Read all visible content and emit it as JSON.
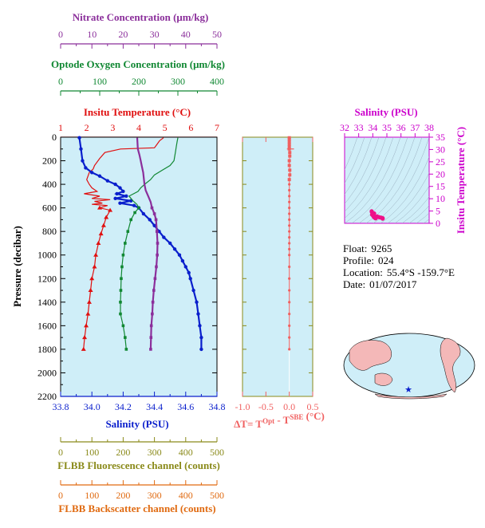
{
  "colors": {
    "nitrate": "#8b2f9b",
    "oxygen": "#118833",
    "temperature": "#e01010",
    "salinity": "#0a1fcc",
    "fluorescence": "#8a8a1a",
    "backscatter": "#e06a10",
    "dt": "#f06060",
    "ts_axis": "#cc00cc",
    "panel_bg": "#cfeef8",
    "land": "#f4b8b8"
  },
  "info": {
    "float_label": "Float:",
    "float": "9265",
    "profile_label": "Profile:",
    "profile": "024",
    "location_label": "Location:",
    "location": "55.4°S  -159.7°E",
    "date_label": "Date:",
    "date": "01/07/2017"
  },
  "chart_data": [
    {
      "type": "line",
      "panel": "profile",
      "ylabel": "Pressure (decibar)",
      "yticks": [
        0,
        200,
        400,
        600,
        800,
        1000,
        1200,
        1400,
        1600,
        1800,
        2000,
        2200
      ],
      "ylim": [
        2200,
        0
      ],
      "axes": {
        "nitrate": {
          "title": "Nitrate Concentration (μm/kg)",
          "range": [
            0,
            50
          ],
          "ticks": [
            0,
            10,
            20,
            30,
            40,
            50
          ]
        },
        "oxygen": {
          "title": "Optode Oxygen Concentration (μm/kg)",
          "range": [
            0,
            400
          ],
          "ticks": [
            0,
            100,
            200,
            300,
            400
          ]
        },
        "temperature": {
          "title": "Insitu Temperature (°C)",
          "range": [
            1,
            7
          ],
          "ticks": [
            1,
            2,
            3,
            4,
            5,
            6,
            7
          ]
        },
        "salinity": {
          "title": "Salinity (PSU)",
          "range": [
            33.8,
            34.8
          ],
          "ticks": [
            "33.8",
            "34.0",
            "34.2",
            "34.4",
            "34.6",
            "34.8"
          ]
        },
        "fluorescence": {
          "title": "FLBB Fluorescence channel (counts)",
          "range": [
            0,
            500
          ],
          "ticks": [
            0,
            100,
            200,
            300,
            400,
            500
          ]
        },
        "backscatter": {
          "title": "FLBB Backscatter channel (counts)",
          "range": [
            0,
            500
          ],
          "ticks": [
            0,
            100,
            200,
            300,
            400,
            500
          ]
        }
      },
      "series": [
        {
          "axis": "temperature",
          "marker": "triangle",
          "points": [
            [
              4.95,
              5
            ],
            [
              4.8,
              30
            ],
            [
              4.7,
              60
            ],
            [
              4.6,
              90
            ],
            [
              3.3,
              100
            ],
            [
              2.7,
              130
            ],
            [
              2.5,
              180
            ],
            [
              2.3,
              240
            ],
            [
              2.25,
              270
            ],
            [
              2.1,
              300
            ],
            [
              2.05,
              330
            ],
            [
              2.0,
              360
            ],
            [
              2.1,
              400
            ],
            [
              2.2,
              430
            ],
            [
              2.4,
              460
            ],
            [
              1.9,
              480
            ],
            [
              2.5,
              500
            ],
            [
              2.2,
              520
            ],
            [
              2.9,
              530
            ],
            [
              2.3,
              545
            ],
            [
              2.6,
              560
            ],
            [
              2.2,
              570
            ],
            [
              2.8,
              580
            ],
            [
              2.5,
              600
            ],
            [
              2.9,
              620
            ],
            [
              2.75,
              680
            ],
            [
              2.65,
              750
            ],
            [
              2.55,
              820
            ],
            [
              2.45,
              900
            ],
            [
              2.35,
              1000
            ],
            [
              2.3,
              1100
            ],
            [
              2.2,
              1200
            ],
            [
              2.15,
              1300
            ],
            [
              2.1,
              1400
            ],
            [
              2.05,
              1500
            ],
            [
              1.98,
              1600
            ],
            [
              1.92,
              1700
            ],
            [
              1.88,
              1800
            ]
          ]
        },
        {
          "axis": "salinity",
          "marker": "circle",
          "points": [
            [
              33.92,
              5
            ],
            [
              33.93,
              100
            ],
            [
              33.94,
              200
            ],
            [
              33.96,
              260
            ],
            [
              34.0,
              300
            ],
            [
              34.05,
              330
            ],
            [
              34.1,
              370
            ],
            [
              34.15,
              400
            ],
            [
              34.18,
              430
            ],
            [
              34.2,
              460
            ],
            [
              34.16,
              480
            ],
            [
              34.22,
              500
            ],
            [
              34.15,
              520
            ],
            [
              34.25,
              540
            ],
            [
              34.18,
              560
            ],
            [
              34.27,
              580
            ],
            [
              34.3,
              600
            ],
            [
              34.33,
              650
            ],
            [
              34.37,
              700
            ],
            [
              34.4,
              750
            ],
            [
              34.43,
              800
            ],
            [
              34.46,
              850
            ],
            [
              34.5,
              900
            ],
            [
              34.53,
              950
            ],
            [
              34.56,
              1000
            ],
            [
              34.58,
              1050
            ],
            [
              34.6,
              1100
            ],
            [
              34.62,
              1150
            ],
            [
              34.63,
              1200
            ],
            [
              34.65,
              1300
            ],
            [
              34.67,
              1400
            ],
            [
              34.68,
              1500
            ],
            [
              34.69,
              1600
            ],
            [
              34.7,
              1700
            ],
            [
              34.7,
              1800
            ]
          ]
        },
        {
          "axis": "oxygen",
          "marker": "square",
          "points": [
            [
              300,
              5
            ],
            [
              298,
              40
            ],
            [
              296,
              80
            ],
            [
              294,
              120
            ],
            [
              292,
              160
            ],
            [
              290,
              200
            ],
            [
              280,
              240
            ],
            [
              260,
              280
            ],
            [
              240,
              320
            ],
            [
              230,
              360
            ],
            [
              215,
              400
            ],
            [
              205,
              430
            ],
            [
              198,
              460
            ],
            [
              175,
              500
            ],
            [
              185,
              540
            ],
            [
              195,
              570
            ],
            [
              200,
              600
            ],
            [
              190,
              640
            ],
            [
              180,
              700
            ],
            [
              172,
              800
            ],
            [
              165,
              900
            ],
            [
              160,
              1000
            ],
            [
              157,
              1100
            ],
            [
              155,
              1200
            ],
            [
              154,
              1300
            ],
            [
              153,
              1400
            ],
            [
              153,
              1500
            ],
            [
              160,
              1600
            ],
            [
              165,
              1700
            ],
            [
              168,
              1800
            ]
          ]
        },
        {
          "axis": "nitrate",
          "marker": "square",
          "points": [
            [
              24.5,
              5
            ],
            [
              24.7,
              100
            ],
            [
              25.2,
              150
            ],
            [
              25.6,
              200
            ],
            [
              26.0,
              250
            ],
            [
              26.4,
              300
            ],
            [
              26.6,
              350
            ],
            [
              26.8,
              400
            ],
            [
              27.2,
              450
            ],
            [
              28.0,
              500
            ],
            [
              28.8,
              550
            ],
            [
              29.2,
              600
            ],
            [
              30.0,
              650
            ],
            [
              30.5,
              700
            ],
            [
              30.8,
              800
            ],
            [
              31.0,
              900
            ],
            [
              30.9,
              1000
            ],
            [
              30.6,
              1100
            ],
            [
              30.2,
              1200
            ],
            [
              29.8,
              1300
            ],
            [
              29.5,
              1400
            ],
            [
              29.3,
              1500
            ],
            [
              29.0,
              1600
            ],
            [
              28.9,
              1700
            ],
            [
              28.8,
              1800
            ]
          ]
        }
      ]
    },
    {
      "type": "scatter",
      "panel": "delta-t",
      "xlabel": "ΔT= T^Opt - T^SBE (°C)",
      "xlim": [
        -1.0,
        0.5
      ],
      "xticks": [
        "-1.0",
        "-0.5",
        "0.0",
        "0.5"
      ],
      "ylim": [
        2200,
        0
      ],
      "points": [
        [
          0.0,
          5
        ],
        [
          0.0,
          20
        ],
        [
          0.0,
          40
        ],
        [
          0.0,
          60
        ],
        [
          0.0,
          80
        ],
        [
          0.0,
          100
        ],
        [
          0.01,
          130
        ],
        [
          0.01,
          160
        ],
        [
          0.0,
          200
        ],
        [
          0.0,
          240
        ],
        [
          0.01,
          280
        ],
        [
          0.01,
          320
        ],
        [
          0.0,
          360
        ],
        [
          0.0,
          400
        ],
        [
          0.0,
          450
        ],
        [
          0.0,
          500
        ],
        [
          0.0,
          550
        ],
        [
          0.0,
          600
        ],
        [
          0.0,
          650
        ],
        [
          0.0,
          700
        ],
        [
          0.0,
          750
        ],
        [
          0.0,
          800
        ],
        [
          0.0,
          850
        ],
        [
          0.0,
          900
        ],
        [
          0.0,
          950
        ],
        [
          0.0,
          1000
        ],
        [
          0.0,
          1100
        ],
        [
          0.0,
          1200
        ],
        [
          0.0,
          1300
        ],
        [
          0.0,
          1400
        ],
        [
          0.0,
          1500
        ],
        [
          0.0,
          1600
        ],
        [
          0.0,
          1700
        ],
        [
          0.0,
          1800
        ]
      ]
    },
    {
      "type": "scatter",
      "panel": "ts-diagram",
      "title": "Salinity (PSU)",
      "ylabel": "Insitu Temperature (°C)",
      "xlim": [
        32,
        38
      ],
      "ylim": [
        0,
        35
      ],
      "xticks": [
        32,
        33,
        34,
        35,
        36,
        37,
        38
      ],
      "yticks": [
        0,
        5,
        10,
        15,
        20,
        25,
        30,
        35
      ],
      "points": [
        [
          33.92,
          4.9
        ],
        [
          33.93,
          4.6
        ],
        [
          34.0,
          3.3
        ],
        [
          34.05,
          2.8
        ],
        [
          34.1,
          2.4
        ],
        [
          34.15,
          2.2
        ],
        [
          34.2,
          2.0
        ],
        [
          34.25,
          2.6
        ],
        [
          34.3,
          2.8
        ],
        [
          34.4,
          2.6
        ],
        [
          34.5,
          2.4
        ],
        [
          34.6,
          2.3
        ],
        [
          34.7,
          2.1
        ],
        [
          34.7,
          1.9
        ],
        [
          34.1,
          4.0
        ],
        [
          33.95,
          3.5
        ]
      ]
    }
  ]
}
